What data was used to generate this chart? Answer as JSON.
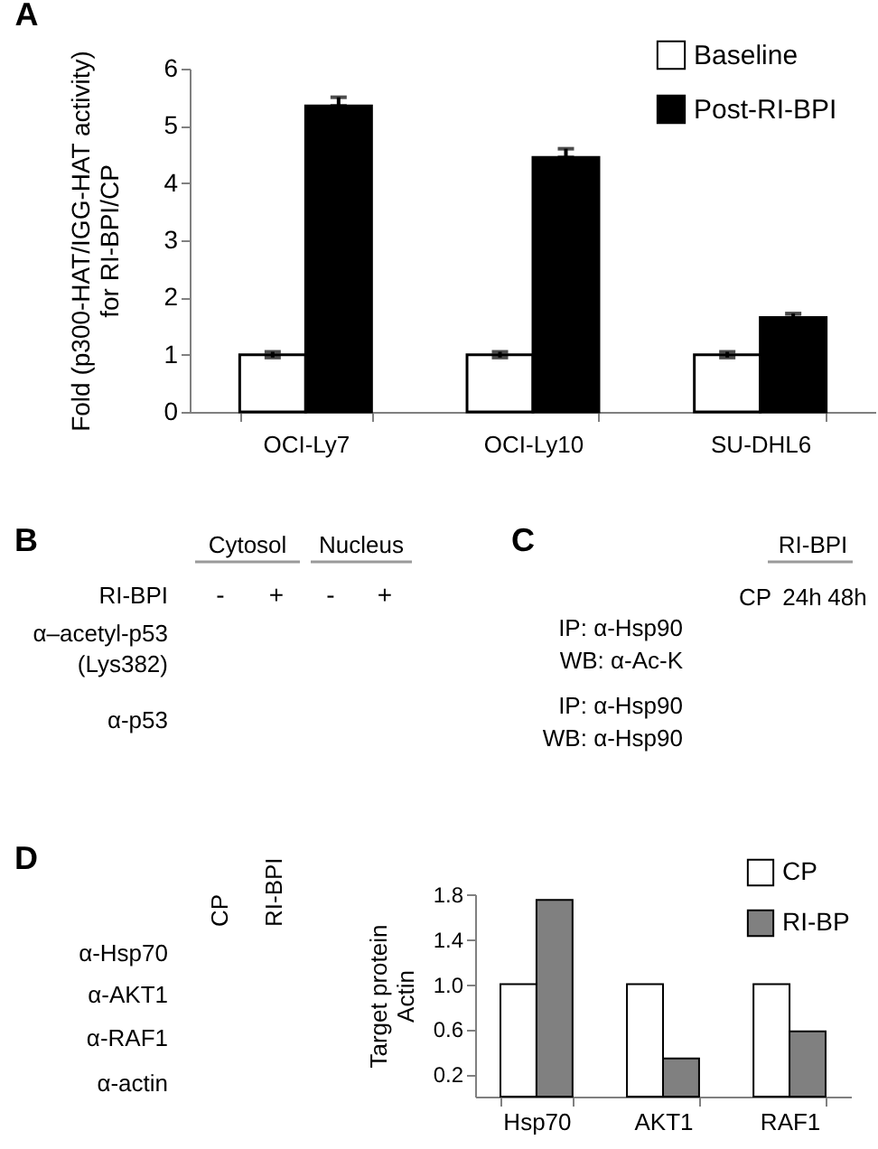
{
  "chart_data": [
    {
      "type": "bar",
      "title": "A",
      "ylabel": "Fold (p300-HAT/IGG-HAT activity)\nfor RI-BPI/CP",
      "categories": [
        "OCI-Ly7",
        "OCI-Ly10",
        "SU-DHL6"
      ],
      "series": [
        {
          "name": "Baseline",
          "color": "#ffffff",
          "values": [
            1,
            1,
            1
          ],
          "errors": [
            0.05,
            0.05,
            0.05
          ]
        },
        {
          "name": "Post-RI-BPI",
          "color": "#000000",
          "values": [
            5.35,
            4.45,
            1.65
          ],
          "errors": [
            [
              5.35,
              5.5
            ],
            [
              4.45,
              4.6
            ],
            [
              1.65,
              1.72
            ]
          ]
        }
      ],
      "ylim": [
        0,
        6
      ],
      "yticks": [
        0,
        1,
        2,
        3,
        4,
        5,
        6
      ],
      "grid": false,
      "legend": "top right"
    },
    {
      "type": "other",
      "title": "B",
      "annotations": [
        "Cytosol",
        "Nucleus",
        "RI-BPI",
        "-",
        "+",
        "-",
        "+",
        "α–acetyl-p53",
        "(Lys382)",
        "α-p53"
      ]
    },
    {
      "type": "other",
      "title": "C",
      "annotations": [
        "RI-BPI",
        "CP",
        "24h",
        "48h",
        "IP: α-Hsp90",
        "WB: α-Ac-K",
        "IP: α-Hsp90",
        "WB: α-Hsp90"
      ]
    },
    {
      "type": "other",
      "title": "D",
      "annotations": [
        "CP",
        "RI-BPI",
        "α-Hsp70",
        "α-AKT1",
        "α-RAF1",
        "α-actin"
      ]
    },
    {
      "type": "bar",
      "ylabel": "Target protein\nActin",
      "categories": [
        "Hsp70",
        "AKT1",
        "RAF1"
      ],
      "series": [
        {
          "name": "CP",
          "color": "#ffffff",
          "values": [
            1,
            1,
            1
          ]
        },
        {
          "name": "RI-BP",
          "color": "#808080",
          "values": [
            1.75,
            0.34,
            0.58
          ]
        }
      ],
      "ylim": [
        0,
        1.8
      ],
      "yticks": [
        0.2,
        0.6,
        {
          "value": 1,
          "label": "1.0"
        },
        1.4,
        1.8
      ],
      "grid": false,
      "legend": "top right"
    }
  ]
}
